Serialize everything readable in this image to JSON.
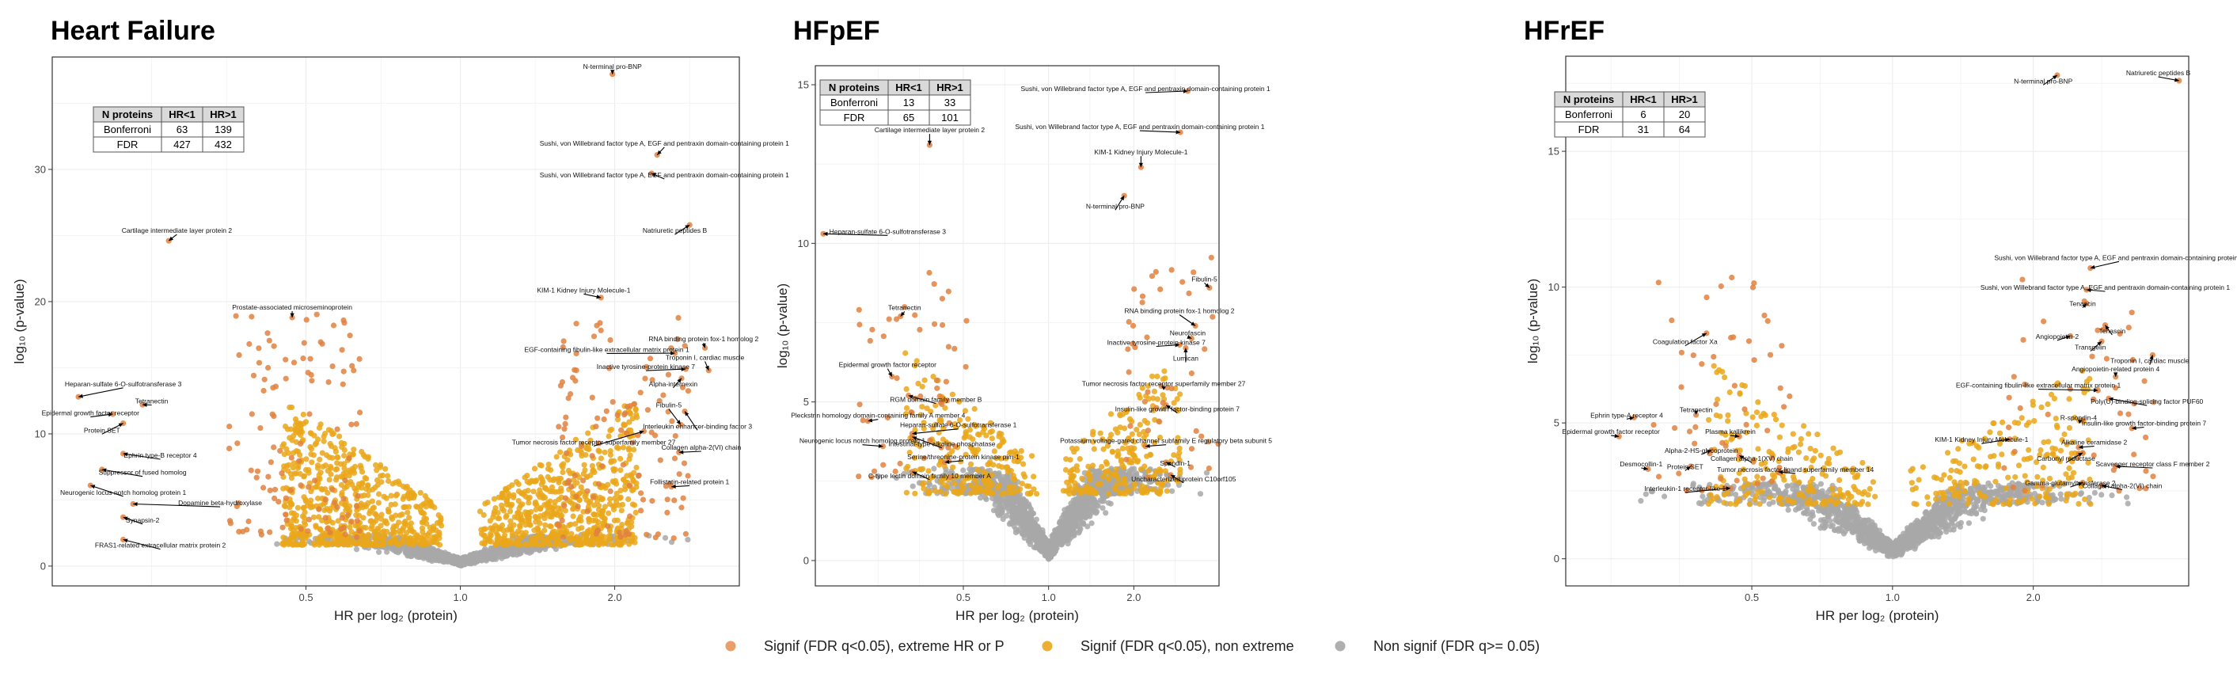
{
  "chart_data": [
    {
      "type": "scatter",
      "title": "Heart Failure",
      "xlabel": "HR per  log₂ (protein)",
      "ylabel": "log₁₀ (p-value)",
      "x_scale": "log2",
      "xlim": [
        0.16,
        3.5
      ],
      "ylim": [
        -1.5,
        38.5
      ],
      "x_ticks": [
        0.5,
        1.0,
        2.0
      ],
      "x_tick_labels": [
        "0.5",
        "1.0",
        "2.0"
      ],
      "y_ticks": [
        0,
        10,
        20,
        30
      ],
      "y_tick_labels": [
        "0",
        "10",
        "20",
        "30"
      ],
      "table": {
        "headers": [
          "N proteins",
          "HR<1",
          "HR>1"
        ],
        "rows": [
          [
            "Bonferroni",
            "63",
            "139"
          ],
          [
            "FDR",
            "427",
            "432"
          ]
        ]
      },
      "cloud": {
        "lo": 0.45,
        "hi": 2.2,
        "signif_min": 1.6,
        "nonsig": 900,
        "signif": 1300,
        "extreme": 230,
        "ymax": 17,
        "seed": 11
      },
      "labels": [
        {
          "text": "N-terminal pro-BNP",
          "hr": 1.98,
          "p": 37.2,
          "lx": 1.98,
          "ly": 37.6
        },
        {
          "text": "Sushi, von Willebrand factor type A, EGF and pentraxin domain-containing protein 1",
          "hr": 2.42,
          "p": 31.1,
          "lx": 2.5,
          "ly": 31.8
        },
        {
          "text": "Sushi, von Willebrand factor type A, EGF and pentraxin domain-containing protein 1",
          "hr": 2.36,
          "p": 29.7,
          "lx": 2.5,
          "ly": 29.4
        },
        {
          "text": "Natriuretic peptides B",
          "hr": 2.8,
          "p": 25.8,
          "lx": 2.62,
          "ly": 25.2
        },
        {
          "text": "Cartilage intermediate layer protein 2",
          "hr": 0.27,
          "p": 24.6,
          "lx": 0.28,
          "ly": 25.2
        },
        {
          "text": "KIM-1 Kidney Injury Molecule-1",
          "hr": 1.88,
          "p": 20.3,
          "lx": 1.74,
          "ly": 20.7
        },
        {
          "text": "Prostate-associated microseminoprotein",
          "hr": 0.47,
          "p": 18.8,
          "lx": 0.47,
          "ly": 19.4
        },
        {
          "text": "RNA binding protein fox-1 homolog 2",
          "hr": 3.0,
          "p": 16.5,
          "lx": 2.98,
          "ly": 17.0
        },
        {
          "text": "EGF-containing fibulin-like extracellular matrix protein 1",
          "hr": 2.62,
          "p": 16.1,
          "lx": 1.93,
          "ly": 16.2
        },
        {
          "text": "Troponin I, cardiac muscle",
          "hr": 3.05,
          "p": 14.8,
          "lx": 3.0,
          "ly": 15.6
        },
        {
          "text": "Inactive tyrosine-protein kinase 7",
          "hr": 2.75,
          "p": 14.9,
          "lx": 2.3,
          "ly": 14.9
        },
        {
          "text": "Alpha-internexin",
          "hr": 2.7,
          "p": 14.2,
          "lx": 2.6,
          "ly": 13.6
        },
        {
          "text": "Heparan-sulfate 6-O-sulfotransferase 3",
          "hr": 0.18,
          "p": 12.8,
          "lx": 0.22,
          "ly": 13.6
        },
        {
          "text": "Tetranectin",
          "hr": 0.24,
          "p": 12.2,
          "lx": 0.25,
          "ly": 12.3
        },
        {
          "text": "Epidermal growth factor receptor",
          "hr": 0.21,
          "p": 11.5,
          "lx": 0.19,
          "ly": 11.4
        },
        {
          "text": "Protein SET",
          "hr": 0.22,
          "p": 10.8,
          "lx": 0.2,
          "ly": 10.1
        },
        {
          "text": "Fibulin-5",
          "hr": 2.69,
          "p": 10.7,
          "lx": 2.55,
          "ly": 12.0
        },
        {
          "text": "Interleukin enhancer-binding factor 3",
          "hr": 2.74,
          "p": 11.7,
          "lx": 2.9,
          "ly": 10.4
        },
        {
          "text": "Tumor necrosis factor receptor superfamily member 27",
          "hr": 2.28,
          "p": 10.2,
          "lx": 1.82,
          "ly": 9.2
        },
        {
          "text": "Collagen alpha-2(VI) chain",
          "hr": 2.67,
          "p": 8.6,
          "lx": 2.95,
          "ly": 8.8
        },
        {
          "text": "Ephrin type-B receptor 4",
          "hr": 0.22,
          "p": 8.5,
          "lx": 0.26,
          "ly": 8.2
        },
        {
          "text": "Suppressor of fused homolog",
          "hr": 0.2,
          "p": 7.3,
          "lx": 0.24,
          "ly": 6.9
        },
        {
          "text": "Neurogenic locus notch homolog protein 1",
          "hr": 0.19,
          "p": 6.1,
          "lx": 0.22,
          "ly": 5.4
        },
        {
          "text": "Follistatin-related protein 1",
          "hr": 2.58,
          "p": 6.0,
          "lx": 2.8,
          "ly": 6.2
        },
        {
          "text": "Dopamine beta-hydroxylase",
          "hr": 0.23,
          "p": 4.7,
          "lx": 0.34,
          "ly": 4.6
        },
        {
          "text": "Synapsin-2",
          "hr": 0.22,
          "p": 3.7,
          "lx": 0.24,
          "ly": 3.3
        },
        {
          "text": "FRAS1-related extracellular matrix protein 2",
          "hr": 0.22,
          "p": 2.0,
          "lx": 0.26,
          "ly": 1.4
        }
      ]
    },
    {
      "type": "scatter",
      "title": "HFpEF",
      "xlabel": "HR per  log₂ (protein)",
      "ylabel": "log₁₀ (p-value)",
      "x_scale": "log2",
      "xlim": [
        0.15,
        4.0
      ],
      "ylim": [
        -0.8,
        15.6
      ],
      "x_ticks": [
        0.5,
        1.0,
        2.0
      ],
      "x_tick_labels": [
        "0.5",
        "1.0",
        "2.0"
      ],
      "y_ticks": [
        0,
        5,
        10,
        15
      ],
      "y_tick_labels": [
        "0",
        "5",
        "10",
        "15"
      ],
      "table": {
        "headers": [
          "N proteins",
          "HR<1",
          "HR>1"
        ],
        "rows": [
          [
            "Bonferroni",
            "13",
            "33"
          ],
          [
            "FDR",
            "65",
            "101"
          ]
        ]
      },
      "cloud": {
        "lo": 0.3,
        "hi": 3.0,
        "signif_min": 2.1,
        "nonsig": 1400,
        "signif": 450,
        "extreme": 90,
        "ymax": 7,
        "seed": 23
      },
      "labels": [
        {
          "text": "Sushi, von Willebrand factor type A, EGF and pentraxin domain-containing protein 1",
          "hr": 3.1,
          "p": 14.8,
          "lx": 2.2,
          "ly": 14.8
        },
        {
          "text": "Sushi, von Willebrand factor type A, EGF and pentraxin domain-containing protein 1",
          "hr": 2.92,
          "p": 13.5,
          "lx": 2.1,
          "ly": 13.6
        },
        {
          "text": "Cartilage intermediate layer protein 2",
          "hr": 0.38,
          "p": 13.1,
          "lx": 0.38,
          "ly": 13.5
        },
        {
          "text": "KIM-1 Kidney Injury Molecule-1",
          "hr": 2.12,
          "p": 12.4,
          "lx": 2.12,
          "ly": 12.8
        },
        {
          "text": "N-terminal pro-BNP",
          "hr": 1.85,
          "p": 11.5,
          "lx": 1.72,
          "ly": 11.1
        },
        {
          "text": "Heparan-sulfate 6-O-sulfotransferase 3",
          "hr": 0.16,
          "p": 10.3,
          "lx": 0.27,
          "ly": 10.3
        },
        {
          "text": "Fibulin-5",
          "hr": 3.7,
          "p": 8.6,
          "lx": 3.55,
          "ly": 8.8
        },
        {
          "text": "Tetranectin",
          "hr": 0.3,
          "p": 7.7,
          "lx": 0.31,
          "ly": 7.9
        },
        {
          "text": "RNA binding protein fox-1 homolog 2",
          "hr": 3.3,
          "p": 7.4,
          "lx": 2.9,
          "ly": 7.8
        },
        {
          "text": "Neurofascin",
          "hr": 3.2,
          "p": 7.0,
          "lx": 3.1,
          "ly": 7.1
        },
        {
          "text": "Inactive tyrosine-protein kinase 7",
          "hr": 2.9,
          "p": 6.8,
          "lx": 2.4,
          "ly": 6.8
        },
        {
          "text": "Lumican",
          "hr": 3.05,
          "p": 6.7,
          "lx": 3.05,
          "ly": 6.3
        },
        {
          "text": "Epidermal growth factor receptor",
          "hr": 0.28,
          "p": 5.8,
          "lx": 0.27,
          "ly": 6.1
        },
        {
          "text": "Tumor necrosis factor receptor superfamily member 27",
          "hr": 2.5,
          "p": 5.5,
          "lx": 2.55,
          "ly": 5.5
        },
        {
          "text": "RGM domain family member B",
          "hr": 0.32,
          "p": 5.2,
          "lx": 0.4,
          "ly": 5.0
        },
        {
          "text": "Insulin-like growth factor-binding protein 7",
          "hr": 2.6,
          "p": 4.9,
          "lx": 2.85,
          "ly": 4.7
        },
        {
          "text": "Pleckstrin homology domain-containing family A member 4",
          "hr": 0.23,
          "p": 4.4,
          "lx": 0.25,
          "ly": 4.5
        },
        {
          "text": "Heparan-sulfate 6-O-sulfotransferase 1",
          "hr": 0.33,
          "p": 4.0,
          "lx": 0.48,
          "ly": 4.2
        },
        {
          "text": "Neurogenic locus notch homolog protein 1",
          "hr": 0.26,
          "p": 3.6,
          "lx": 0.22,
          "ly": 3.7
        },
        {
          "text": "Intestinal-type alkaline phosphatase",
          "hr": 0.33,
          "p": 3.9,
          "lx": 0.42,
          "ly": 3.6
        },
        {
          "text": "Potassium voltage-gated channel subfamily E regulatory beta subunit 5",
          "hr": 2.2,
          "p": 3.6,
          "lx": 2.6,
          "ly": 3.7
        },
        {
          "text": "Serine/threonine-protein kinase pim-1",
          "hr": 0.43,
          "p": 3.1,
          "lx": 0.5,
          "ly": 3.2
        },
        {
          "text": "Spondin-1",
          "hr": 2.6,
          "p": 3.1,
          "lx": 2.8,
          "ly": 3.0
        },
        {
          "text": "C-type lectin domain family 10 member A",
          "hr": 0.33,
          "p": 2.8,
          "lx": 0.38,
          "ly": 2.6
        },
        {
          "text": "Uncharacterized protein C10orf105",
          "hr": 2.7,
          "p": 2.7,
          "lx": 3.0,
          "ly": 2.5
        }
      ]
    },
    {
      "type": "scatter",
      "title": "HFrEF",
      "xlabel": "HR per  log₂ (protein)",
      "ylabel": "log₁₀ (p-value)",
      "x_scale": "log2",
      "xlim": [
        0.2,
        4.3
      ],
      "ylim": [
        -1.0,
        18.5
      ],
      "x_ticks": [
        0.5,
        1.0,
        2.0
      ],
      "x_tick_labels": [
        "0.5",
        "1.0",
        "2.0"
      ],
      "y_ticks": [
        0,
        5,
        10,
        15
      ],
      "y_tick_labels": [
        "0",
        "5",
        "10",
        "15"
      ],
      "table": {
        "headers": [
          "N proteins",
          "HR<1",
          "HR>1"
        ],
        "rows": [
          [
            "Bonferroni",
            "6",
            "20"
          ],
          [
            "FDR",
            "31",
            "64"
          ]
        ]
      },
      "cloud": {
        "lo": 0.4,
        "hi": 2.7,
        "signif_min": 2.0,
        "nonsig": 1300,
        "signif": 380,
        "extreme": 95,
        "ymax": 8,
        "seed": 37
      },
      "labels": [
        {
          "text": "Natriuretic peptides B",
          "hr": 4.1,
          "p": 17.6,
          "lx": 3.7,
          "ly": 17.8
        },
        {
          "text": "N-terminal pro-BNP",
          "hr": 2.25,
          "p": 17.8,
          "lx": 2.1,
          "ly": 17.5
        },
        {
          "text": "Sushi, von Willebrand factor type A, EGF and pentraxin domain-containing protein 1",
          "hr": 2.65,
          "p": 10.7,
          "lx": 3.05,
          "ly": 11.0
        },
        {
          "text": "Sushi, von Willebrand factor type A, EGF and pentraxin domain-containing protein 1",
          "hr": 2.6,
          "p": 9.9,
          "lx": 2.85,
          "ly": 9.9
        },
        {
          "text": "Tenascin",
          "hr": 2.6,
          "p": 9.4,
          "lx": 2.55,
          "ly": 9.3
        },
        {
          "text": "Tenascin",
          "hr": 2.85,
          "p": 8.6,
          "lx": 2.95,
          "ly": 8.3
        },
        {
          "text": "Angiopoietin-2",
          "hr": 2.4,
          "p": 8.2,
          "lx": 2.25,
          "ly": 8.1
        },
        {
          "text": "Transgelin",
          "hr": 2.8,
          "p": 8.0,
          "lx": 2.65,
          "ly": 7.7
        },
        {
          "text": "Coagulation factor Xa",
          "hr": 0.4,
          "p": 8.3,
          "lx": 0.36,
          "ly": 7.9
        },
        {
          "text": "Troponin I, cardiac muscle",
          "hr": 3.6,
          "p": 7.5,
          "lx": 3.55,
          "ly": 7.2
        },
        {
          "text": "Angiopoietin-related protein 4",
          "hr": 3.0,
          "p": 6.7,
          "lx": 3.0,
          "ly": 6.9
        },
        {
          "text": "EGF-containing fibulin-like extracellular matrix protein 1",
          "hr": 2.75,
          "p": 6.2,
          "lx": 2.05,
          "ly": 6.3
        },
        {
          "text": "Poly(U)-binding-splicing factor PUF60",
          "hr": 2.9,
          "p": 5.9,
          "lx": 3.5,
          "ly": 5.7
        },
        {
          "text": "Ephrin type-A receptor 4",
          "hr": 0.28,
          "p": 5.2,
          "lx": 0.27,
          "ly": 5.2
        },
        {
          "text": "Tetranectin",
          "hr": 0.38,
          "p": 5.3,
          "lx": 0.38,
          "ly": 5.4
        },
        {
          "text": "R-spondin-4",
          "hr": 2.55,
          "p": 5.1,
          "lx": 2.5,
          "ly": 5.1
        },
        {
          "text": "Insulin-like growth factor-binding protein 7",
          "hr": 3.25,
          "p": 4.8,
          "lx": 3.45,
          "ly": 4.9
        },
        {
          "text": "Epidermal growth factor receptor",
          "hr": 0.26,
          "p": 4.5,
          "lx": 0.25,
          "ly": 4.6
        },
        {
          "text": "Plasma kallikrein",
          "hr": 0.47,
          "p": 4.5,
          "lx": 0.45,
          "ly": 4.6
        },
        {
          "text": "KIM-1 Kidney Injury Molecule-1",
          "hr": 1.78,
          "p": 4.4,
          "lx": 1.55,
          "ly": 4.3
        },
        {
          "text": "Alpha-2-HS-glycoprotein",
          "hr": 0.41,
          "p": 4.0,
          "lx": 0.39,
          "ly": 3.9
        },
        {
          "text": "Alkaline ceramidase 2",
          "hr": 2.5,
          "p": 4.1,
          "lx": 2.7,
          "ly": 4.2
        },
        {
          "text": "Collagen alpha-1(XV) chain",
          "hr": 0.47,
          "p": 3.8,
          "lx": 0.5,
          "ly": 3.6
        },
        {
          "text": "Carbonyl reductase",
          "hr": 2.55,
          "p": 3.9,
          "lx": 2.35,
          "ly": 3.6
        },
        {
          "text": "Scavenger receptor class F member 2",
          "hr": 3.0,
          "p": 3.4,
          "lx": 3.6,
          "ly": 3.4
        },
        {
          "text": "Desmocollin-1",
          "hr": 0.3,
          "p": 3.3,
          "lx": 0.29,
          "ly": 3.4
        },
        {
          "text": "Protein SET",
          "hr": 0.37,
          "p": 3.4,
          "lx": 0.36,
          "ly": 3.3
        },
        {
          "text": "Tumor necrosis factor ligand superfamily member 14",
          "hr": 0.57,
          "p": 3.2,
          "lx": 0.62,
          "ly": 3.2
        },
        {
          "text": "Gamma-glutamyltransferase 2",
          "hr": 2.55,
          "p": 2.8,
          "lx": 2.4,
          "ly": 2.7
        },
        {
          "text": "Collagen alpha-2(VI) chain",
          "hr": 2.8,
          "p": 2.7,
          "lx": 3.1,
          "ly": 2.6
        },
        {
          "text": "Interleukin-1 receptor-like 1",
          "hr": 0.45,
          "p": 2.6,
          "lx": 0.36,
          "ly": 2.5
        }
      ]
    }
  ],
  "legend": {
    "items": [
      {
        "label": "Signif (FDR q<0.05), extreme HR or P",
        "color": "#e8935a"
      },
      {
        "label": "Signif (FDR q<0.05), non extreme",
        "color": "#e9a71b"
      },
      {
        "label": "Non signif (FDR q>= 0.05)",
        "color": "#a6a6a6"
      }
    ]
  },
  "colors": {
    "extreme": "#e0813f",
    "signif": "#eaa71a",
    "nonsig": "#a8a8a8",
    "grid": "#ebebeb",
    "frame": "#333333"
  }
}
